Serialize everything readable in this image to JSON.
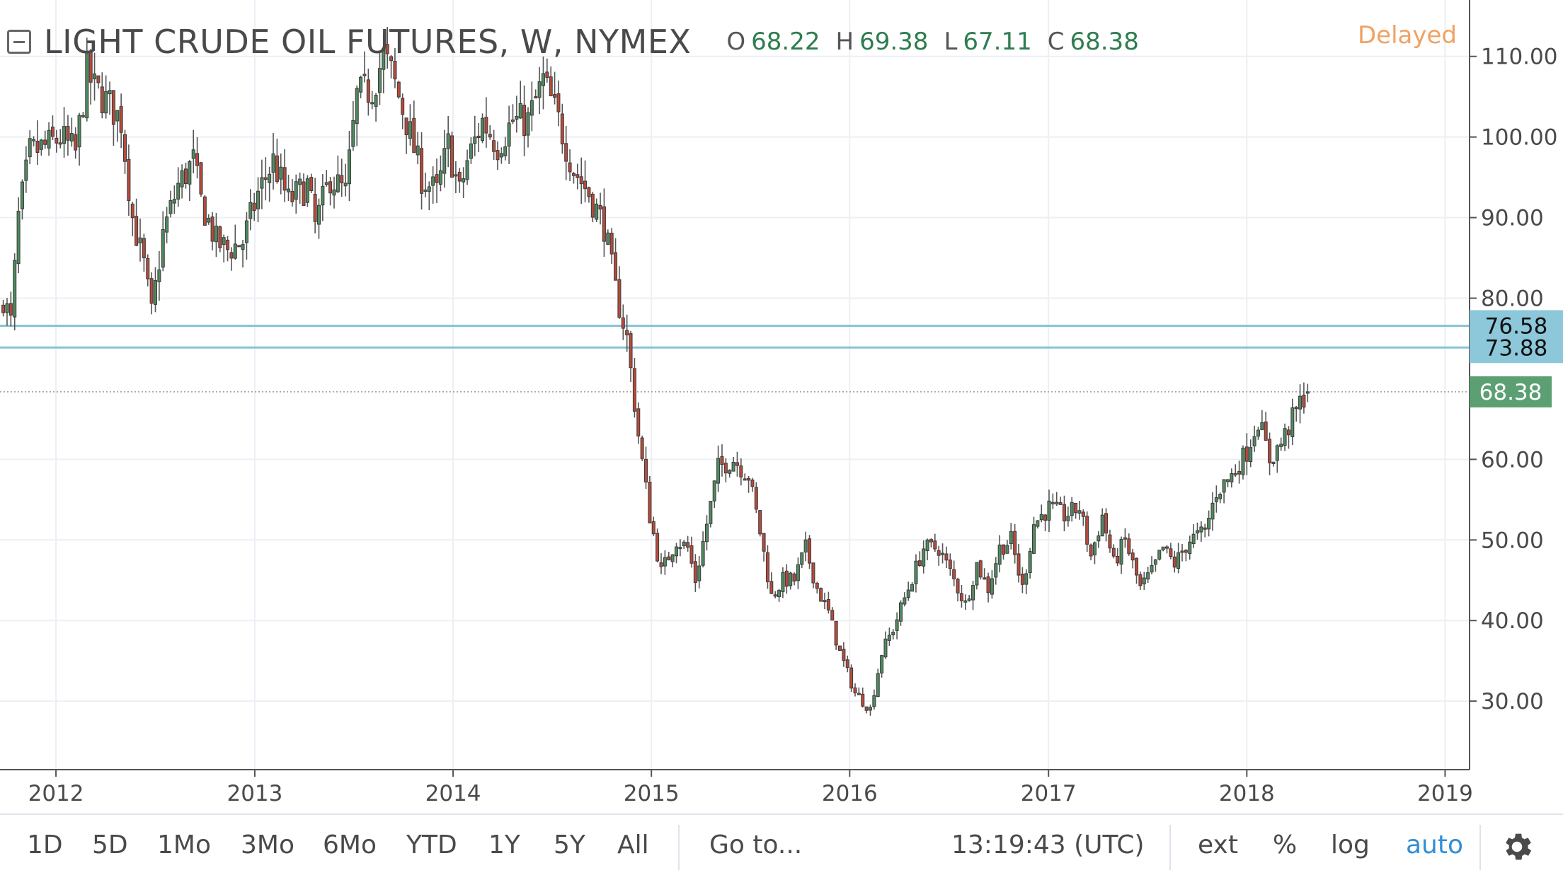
{
  "header": {
    "title": "LIGHT CRUDE OIL FUTURES, W, NYMEX",
    "ohlc": [
      {
        "label": "O",
        "value": "68.22"
      },
      {
        "label": "H",
        "value": "69.38"
      },
      {
        "label": "L",
        "value": "67.11"
      },
      {
        "label": "C",
        "value": "68.38"
      }
    ],
    "status": "Delayed"
  },
  "toolbar": {
    "ranges": [
      "1D",
      "5D",
      "1Mo",
      "3Mo",
      "6Mo",
      "YTD",
      "1Y",
      "5Y",
      "All"
    ],
    "goto_label": "Go to...",
    "clock": "13:19:43 (UTC)",
    "ext_label": "ext",
    "percent_label": "%",
    "log_label": "log",
    "auto_label": "auto"
  },
  "colors": {
    "up_body": "#4f8a5f",
    "down_body": "#b84a3a",
    "wick": "#555555",
    "hline": "#86c4d5",
    "hline_label_bg": "#8cc7da",
    "last_price_bg": "#5c9f72",
    "delayed_text": "#f0a263",
    "auto_text": "#2f8fd6"
  },
  "chart_data": {
    "type": "candlestick",
    "interval": "W",
    "ylim": [
      21.5,
      117
    ],
    "y_ticks": [
      "110.00",
      "100.00",
      "90.00",
      "80.00",
      "60.00",
      "50.00",
      "40.00",
      "30.00"
    ],
    "x_ticks": [
      "2012",
      "2013",
      "2014",
      "2015",
      "2016",
      "2017",
      "2018",
      "2019"
    ],
    "xlim": [
      "2011-09-20",
      "2019-02-15"
    ],
    "horizontal_lines": [
      76.58,
      73.88
    ],
    "horizontal_line_labels": [
      "76.58",
      "73.88"
    ],
    "last_price": 68.38,
    "last_price_label": "68.38",
    "close_anchors": [
      [
        "2011-09-26",
        80
      ],
      [
        "2011-10-10",
        77
      ],
      [
        "2011-10-24",
        90
      ],
      [
        "2011-11-14",
        98
      ],
      [
        "2011-12-19",
        99
      ],
      [
        "2012-01-09",
        100
      ],
      [
        "2012-02-06",
        98
      ],
      [
        "2012-02-27",
        108
      ],
      [
        "2012-03-12",
        106
      ],
      [
        "2012-04-09",
        104
      ],
      [
        "2012-04-30",
        102
      ],
      [
        "2012-05-21",
        90
      ],
      [
        "2012-06-11",
        84
      ],
      [
        "2012-06-25",
        78
      ],
      [
        "2012-07-16",
        88
      ],
      [
        "2012-08-13",
        94
      ],
      [
        "2012-09-10",
        97
      ],
      [
        "2012-09-24",
        92
      ],
      [
        "2012-10-22",
        87
      ],
      [
        "2012-11-12",
        86
      ],
      [
        "2012-12-10",
        87
      ],
      [
        "2013-01-07",
        93
      ],
      [
        "2013-02-04",
        97
      ],
      [
        "2013-03-04",
        92
      ],
      [
        "2013-04-08",
        94
      ],
      [
        "2013-04-22",
        89
      ],
      [
        "2013-05-20",
        95
      ],
      [
        "2013-06-17",
        93
      ],
      [
        "2013-07-08",
        105
      ],
      [
        "2013-08-05",
        106
      ],
      [
        "2013-08-26",
        110
      ],
      [
        "2013-09-09",
        108
      ],
      [
        "2013-10-07",
        102
      ],
      [
        "2013-11-04",
        95
      ],
      [
        "2013-12-02",
        93
      ],
      [
        "2013-12-23",
        99
      ],
      [
        "2014-01-13",
        93
      ],
      [
        "2014-01-27",
        97
      ],
      [
        "2014-02-24",
        102
      ],
      [
        "2014-03-24",
        99
      ],
      [
        "2014-04-21",
        102
      ],
      [
        "2014-05-19",
        102
      ],
      [
        "2014-06-16",
        107
      ],
      [
        "2014-07-14",
        102
      ],
      [
        "2014-08-11",
        96
      ],
      [
        "2014-09-08",
        93
      ],
      [
        "2014-10-06",
        89
      ],
      [
        "2014-10-27",
        81
      ],
      [
        "2014-11-17",
        75
      ],
      [
        "2014-12-08",
        63
      ],
      [
        "2014-12-29",
        53
      ],
      [
        "2015-01-19",
        46
      ],
      [
        "2015-02-16",
        50
      ],
      [
        "2015-03-09",
        49
      ],
      [
        "2015-03-23",
        45
      ],
      [
        "2015-04-13",
        52
      ],
      [
        "2015-05-04",
        59
      ],
      [
        "2015-06-01",
        60
      ],
      [
        "2015-06-29",
        58
      ],
      [
        "2015-07-20",
        51
      ],
      [
        "2015-08-10",
        43
      ],
      [
        "2015-08-31",
        45
      ],
      [
        "2015-09-21",
        45
      ],
      [
        "2015-10-12",
        49
      ],
      [
        "2015-11-02",
        44
      ],
      [
        "2015-11-23",
        41
      ],
      [
        "2015-12-14",
        36
      ],
      [
        "2016-01-11",
        31
      ],
      [
        "2016-02-08",
        29
      ],
      [
        "2016-02-29",
        36
      ],
      [
        "2016-03-21",
        39
      ],
      [
        "2016-04-18",
        44
      ],
      [
        "2016-05-16",
        49
      ],
      [
        "2016-06-13",
        49
      ],
      [
        "2016-07-11",
        45
      ],
      [
        "2016-08-01",
        42
      ],
      [
        "2016-08-22",
        47
      ],
      [
        "2016-09-12",
        44
      ],
      [
        "2016-10-03",
        49
      ],
      [
        "2016-10-24",
        50
      ],
      [
        "2016-11-14",
        44
      ],
      [
        "2016-12-05",
        52
      ],
      [
        "2017-01-02",
        54
      ],
      [
        "2017-01-30",
        53
      ],
      [
        "2017-02-27",
        54
      ],
      [
        "2017-03-20",
        48
      ],
      [
        "2017-04-10",
        53
      ],
      [
        "2017-05-01",
        47
      ],
      [
        "2017-05-22",
        50
      ],
      [
        "2017-06-19",
        44
      ],
      [
        "2017-07-10",
        46
      ],
      [
        "2017-07-31",
        49
      ],
      [
        "2017-08-21",
        47
      ],
      [
        "2017-09-18",
        50
      ],
      [
        "2017-10-16",
        51
      ],
      [
        "2017-11-06",
        56
      ],
      [
        "2017-12-04",
        58
      ],
      [
        "2018-01-01",
        61
      ],
      [
        "2018-01-22",
        65
      ],
      [
        "2018-02-12",
        60
      ],
      [
        "2018-03-05",
        62
      ],
      [
        "2018-03-26",
        65
      ],
      [
        "2018-04-09",
        67
      ],
      [
        "2018-04-23",
        68.38
      ]
    ]
  }
}
